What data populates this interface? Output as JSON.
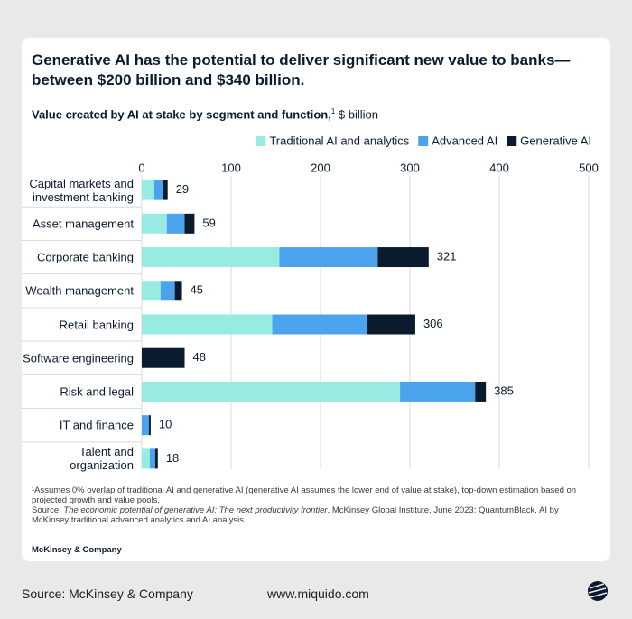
{
  "chart_data": {
    "type": "stacked-bar-horizontal",
    "title": "Generative AI has the potential to deliver significant new value to banks—between $200 billion and $340 billion.",
    "subtitle": "Value created by AI at stake by segment and function,",
    "subtitle_note": "1",
    "unit": "$ billion",
    "categories": [
      "Capital markets and investment banking",
      "Asset management",
      "Corporate banking",
      "Wealth management",
      "Retail banking",
      "Software engineering",
      "Risk and legal",
      "IT and finance",
      "Talent and organization"
    ],
    "series": [
      {
        "name": "Traditional AI and analytics",
        "color": "#97ebe1",
        "values": [
          14,
          28,
          154,
          21,
          146,
          0,
          289,
          0,
          9
        ]
      },
      {
        "name": "Advanced AI",
        "color": "#4aa3ec",
        "values": [
          10,
          20,
          110,
          16,
          106,
          0,
          84,
          8,
          6
        ]
      },
      {
        "name": "Generative  AI",
        "color": "#0b1b2e",
        "values": [
          5,
          11,
          57,
          8,
          54,
          48,
          12,
          2,
          3
        ]
      }
    ],
    "totals": [
      29,
      59,
      321,
      45,
      306,
      48,
      385,
      10,
      18
    ],
    "xlim": [
      0,
      500
    ],
    "xticks": [
      0,
      100,
      200,
      300,
      400,
      500
    ],
    "grid": true,
    "legend": "top-right",
    "footnote": "¹Assumes 0% overlap of traditional AI and generative AI (generative AI assumes the lower end of value at stake), top-down estimation based on projected growth and value pools.",
    "source_prefix": "Source: ",
    "source_title": "The economic potential of generative AI: The next productivity frontier",
    "source_suffix": ", McKinsey Global Institute, June 2023; QuantumBlack, AI by McKinsey traditional advanced analytics and AI analysis",
    "brand": "McKinsey & Company"
  },
  "footer": {
    "source": "Source: McKinsey & Company",
    "site": "www.miquido.com"
  }
}
